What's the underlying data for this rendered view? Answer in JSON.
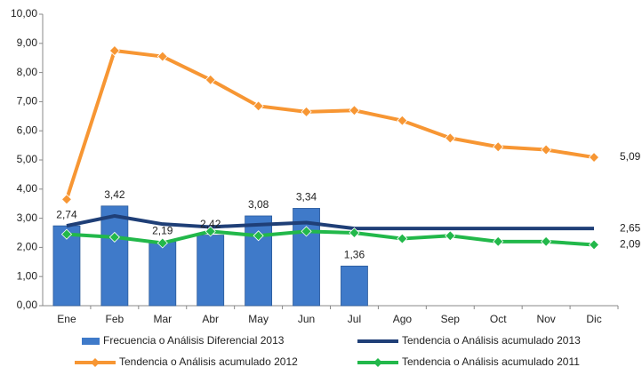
{
  "chart_data": {
    "type": "bar",
    "categories": [
      "Ene",
      "Feb",
      "Mar",
      "Abr",
      "May",
      "Jun",
      "Jul",
      "Ago",
      "Sep",
      "Oct",
      "Nov",
      "Dic"
    ],
    "ylim": [
      0,
      10
    ],
    "yticks": [
      {
        "value": 0,
        "label": "0,00"
      },
      {
        "value": 1,
        "label": "1,00"
      },
      {
        "value": 2,
        "label": "2,00"
      },
      {
        "value": 3,
        "label": "3,00"
      },
      {
        "value": 4,
        "label": "4,00"
      },
      {
        "value": 5,
        "label": "5,00"
      },
      {
        "value": 6,
        "label": "6,00"
      },
      {
        "value": 7,
        "label": "7,00"
      },
      {
        "value": 8,
        "label": "8,00"
      },
      {
        "value": 9,
        "label": "9,00"
      },
      {
        "value": 10,
        "label": "10,00"
      }
    ],
    "grid": false,
    "legend": "bottom",
    "series": [
      {
        "name": "Frecuencia o Análisis Diferencial 2013",
        "type": "bar",
        "color": "#3f7ac9",
        "values": [
          2.74,
          3.42,
          2.19,
          2.42,
          3.08,
          3.34,
          1.36,
          null,
          null,
          null,
          null,
          null
        ],
        "value_labels": [
          "2,74",
          "3,42",
          "2,19",
          "2,42",
          "3,08",
          "3,34",
          "1,36",
          null,
          null,
          null,
          null,
          null
        ]
      },
      {
        "name": "Tendencia o Análisis acumulado 2013",
        "type": "line",
        "marker": false,
        "color": "#1f3f77",
        "values": [
          2.74,
          3.08,
          2.8,
          2.7,
          2.78,
          2.85,
          2.65,
          2.65,
          2.65,
          2.65,
          2.65,
          2.65
        ],
        "value_labels": [
          null,
          null,
          null,
          null,
          null,
          null,
          null,
          null,
          null,
          null,
          null,
          "2,65"
        ]
      },
      {
        "name": "Tendencia o Análisis acumulado 2012",
        "type": "line",
        "marker": true,
        "color": "#f79633",
        "values": [
          3.65,
          8.75,
          8.55,
          7.75,
          6.85,
          6.65,
          6.7,
          6.35,
          5.75,
          5.45,
          5.35,
          5.09
        ],
        "value_labels": [
          null,
          null,
          null,
          null,
          null,
          null,
          null,
          null,
          null,
          null,
          null,
          "5,09"
        ]
      },
      {
        "name": "Tendencia o Análisis acumulado 2011",
        "type": "line",
        "marker": true,
        "color": "#22b84a",
        "values": [
          2.45,
          2.35,
          2.15,
          2.55,
          2.4,
          2.55,
          2.5,
          2.3,
          2.4,
          2.2,
          2.2,
          2.09
        ],
        "value_labels": [
          null,
          null,
          null,
          null,
          null,
          null,
          null,
          null,
          null,
          null,
          null,
          "2,09"
        ]
      }
    ]
  }
}
